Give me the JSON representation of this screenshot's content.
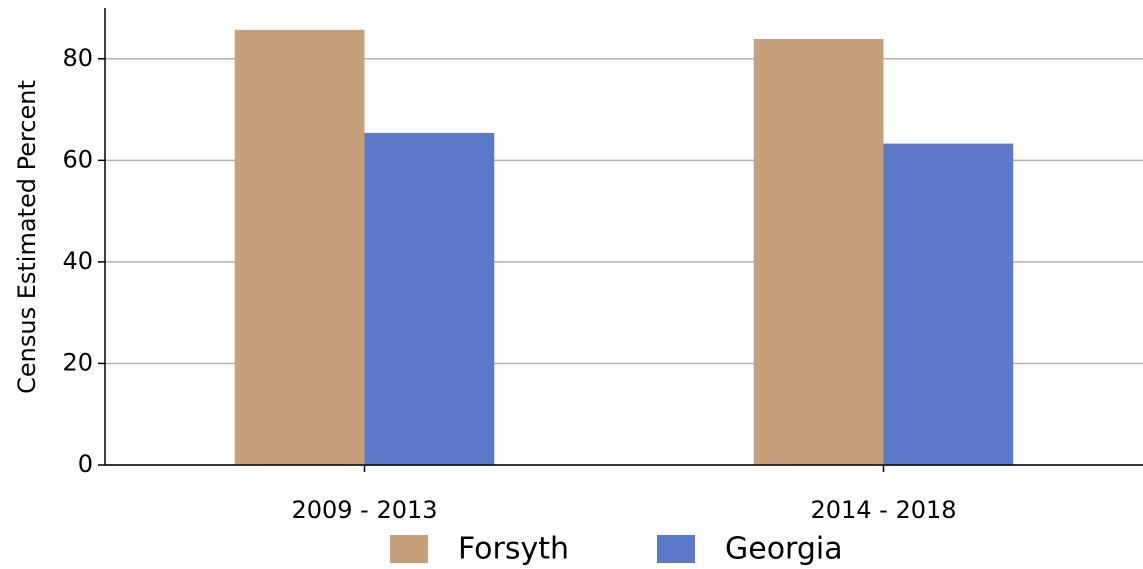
{
  "chart_data": {
    "type": "bar",
    "y_label": "Census Estimated Percent",
    "categories": [
      "2009 - 2013",
      "2014 - 2018"
    ],
    "series": [
      {
        "name": "Forsyth",
        "color": "#c69f7b",
        "values": [
          85.7,
          83.9
        ]
      },
      {
        "name": "Georgia",
        "color": "#5b79c8",
        "values": [
          65.4,
          63.3
        ]
      }
    ],
    "ylim": [
      0,
      90
    ],
    "yticks": [
      0,
      20,
      40,
      60,
      80
    ],
    "grid": true,
    "legend": "bottom"
  }
}
